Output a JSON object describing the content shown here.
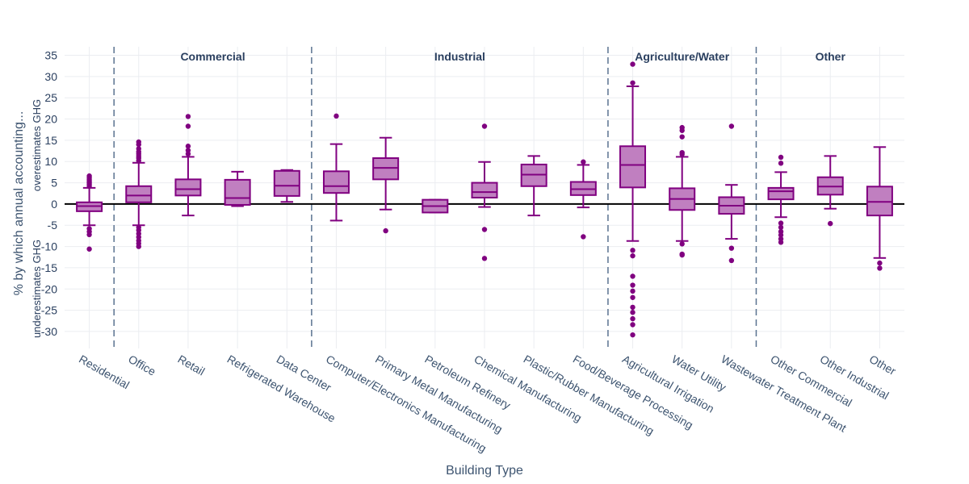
{
  "chart_data": {
    "type": "box",
    "xlabel": "Building Type",
    "ylabel": "% by which annual accounting...",
    "ylabel_upper": "overestimates GHG",
    "ylabel_lower": "underestimates GHG",
    "ylim": [
      -34,
      37
    ],
    "yticks": [
      -30,
      -25,
      -20,
      -15,
      -10,
      -5,
      0,
      5,
      10,
      15,
      20,
      25,
      30,
      35
    ],
    "grid": true,
    "zero_line": true,
    "colors": {
      "box_fill": "#c07fc0",
      "box_line": "#800080",
      "point": "#800080",
      "divider": "#5a7290",
      "zero": "#000000"
    },
    "groups": [
      {
        "name": "Commercial",
        "start": 1,
        "end": 4
      },
      {
        "name": "Industrial",
        "start": 5,
        "end": 10
      },
      {
        "name": "Agriculture/Water",
        "start": 11,
        "end": 13
      },
      {
        "name": "Other",
        "start": 14,
        "end": 16
      }
    ],
    "categories": [
      "Residential",
      "Office",
      "Retail",
      "Refrigerated Warehouse",
      "Data Center",
      "Computer/Electronics Manufacturing",
      "Primary Metal Manufacturing",
      "Petroleum Refinery",
      "Chemical Manufacturing",
      "Plastic/Rubber Manufacturing",
      "Food/Beverage Processing",
      "Agricultural Irrigation",
      "Water Utility",
      "Wastewater Treatment Plant",
      "Other Commercial",
      "Other Industrial",
      "Other"
    ],
    "boxes": [
      {
        "category": "Residential",
        "lower_whisker": -5,
        "q1": -1.7,
        "median": -0.5,
        "q3": 0.4,
        "upper_whisker": 3.8,
        "outliers": [
          4.2,
          4.6,
          5,
          5.4,
          5.8,
          6.2,
          6.6,
          -5.8,
          -6.5,
          -7.2,
          -10.6
        ]
      },
      {
        "category": "Office",
        "lower_whisker": -5,
        "q1": 0.4,
        "median": 2,
        "q3": 4.2,
        "upper_whisker": 9.7,
        "outliers": [
          10.2,
          10.8,
          11.3,
          11.8,
          12.3,
          13,
          14,
          14.6,
          -5.5,
          -6.2,
          -7,
          -7.8,
          -8.6,
          -9.3,
          -10
        ]
      },
      {
        "category": "Retail",
        "lower_whisker": -2.7,
        "q1": 2,
        "median": 3.5,
        "q3": 5.8,
        "upper_whisker": 11.1,
        "outliers": [
          11.8,
          12.6,
          13.6,
          18.3,
          20.6
        ]
      },
      {
        "category": "Refrigerated Warehouse",
        "lower_whisker": -0.5,
        "q1": -0.2,
        "median": 1.4,
        "q3": 5.7,
        "upper_whisker": 7.6,
        "outliers": []
      },
      {
        "category": "Data Center",
        "lower_whisker": 0.5,
        "q1": 1.9,
        "median": 4.3,
        "q3": 7.8,
        "upper_whisker": 8,
        "outliers": []
      },
      {
        "category": "Computer/Electronics Manufacturing",
        "lower_whisker": -3.9,
        "q1": 2.6,
        "median": 4.2,
        "q3": 7.7,
        "upper_whisker": 14.1,
        "outliers": [
          20.7
        ]
      },
      {
        "category": "Primary Metal Manufacturing",
        "lower_whisker": -1.3,
        "q1": 5.8,
        "median": 8.5,
        "q3": 10.8,
        "upper_whisker": 15.6,
        "outliers": [
          -6.3
        ]
      },
      {
        "category": "Petroleum Refinery",
        "lower_whisker": -2,
        "q1": -2,
        "median": -0.5,
        "q3": 1,
        "upper_whisker": 1,
        "outliers": []
      },
      {
        "category": "Chemical Manufacturing",
        "lower_whisker": -0.7,
        "q1": 1.5,
        "median": 2.8,
        "q3": 5,
        "upper_whisker": 9.9,
        "outliers": [
          18.3,
          -6,
          -12.8
        ]
      },
      {
        "category": "Plastic/Rubber Manufacturing",
        "lower_whisker": -2.7,
        "q1": 4.2,
        "median": 6.9,
        "q3": 9.3,
        "upper_whisker": 11.3,
        "outliers": []
      },
      {
        "category": "Food/Beverage Processing",
        "lower_whisker": -0.8,
        "q1": 2.1,
        "median": 3.5,
        "q3": 5.2,
        "upper_whisker": 9.2,
        "outliers": [
          9.9,
          -7.7
        ]
      },
      {
        "category": "Agricultural Irrigation",
        "lower_whisker": -8.7,
        "q1": 3.9,
        "median": 9.2,
        "q3": 13.6,
        "upper_whisker": 27.7,
        "outliers": [
          28.5,
          32.9,
          -10.9,
          -12.2,
          -17,
          -19.1,
          -20.5,
          -22,
          -24.3,
          -25.5,
          -27,
          -28.4,
          -30.8
        ]
      },
      {
        "category": "Water Utility",
        "lower_whisker": -8.7,
        "q1": -1.4,
        "median": 1.2,
        "q3": 3.7,
        "upper_whisker": 11.1,
        "outliers": [
          11.7,
          12.1,
          15.8,
          17.3,
          18,
          -9.4,
          -11.8,
          -12
        ]
      },
      {
        "category": "Wastewater Treatment Plant",
        "lower_whisker": -8.2,
        "q1": -2.3,
        "median": -0.4,
        "q3": 1.6,
        "upper_whisker": 4.5,
        "outliers": [
          18.3,
          -10.4,
          -13.3
        ]
      },
      {
        "category": "Other Commercial",
        "lower_whisker": -3.1,
        "q1": 1.1,
        "median": 3,
        "q3": 3.8,
        "upper_whisker": 7.5,
        "outliers": [
          9.6,
          11,
          -4.5,
          -5.5,
          -6.5,
          -7.3,
          -8.2,
          -9
        ]
      },
      {
        "category": "Other Industrial",
        "lower_whisker": -1.1,
        "q1": 2.2,
        "median": 4.1,
        "q3": 6.3,
        "upper_whisker": 11.3,
        "outliers": [
          -4.6
        ]
      },
      {
        "category": "Other",
        "lower_whisker": -12.7,
        "q1": -2.7,
        "median": 0.5,
        "q3": 4.1,
        "upper_whisker": 13.4,
        "outliers": [
          -13.9,
          -15.1
        ]
      }
    ]
  }
}
